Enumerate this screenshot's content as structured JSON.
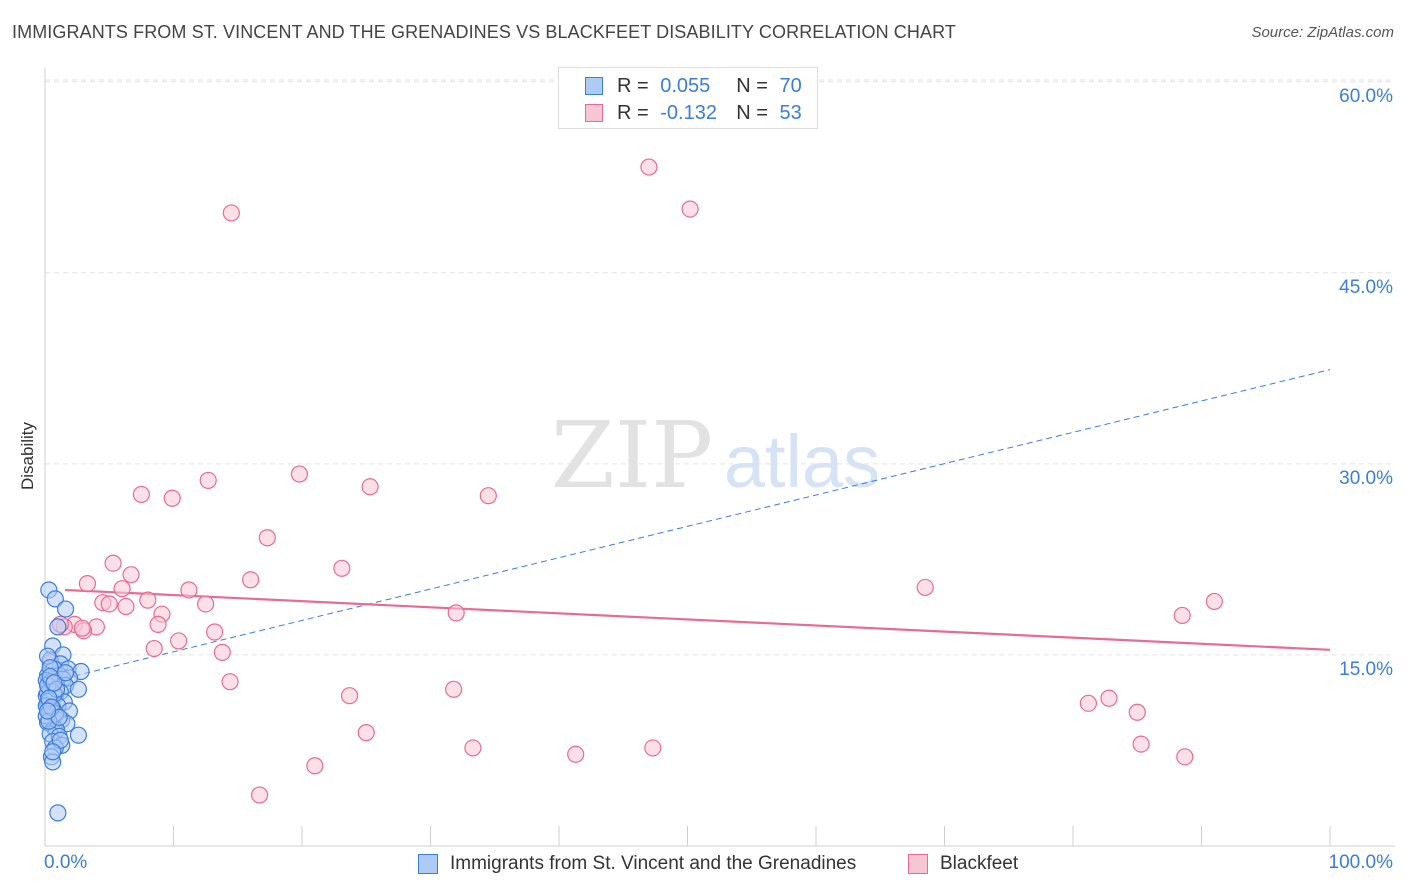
{
  "header": {
    "title": "IMMIGRANTS FROM ST. VINCENT AND THE GRENADINES VS BLACKFEET DISABILITY CORRELATION CHART",
    "source": "Source: ZipAtlas.com"
  },
  "watermark": {
    "zip": "ZIP",
    "atlas": "atlas"
  },
  "legend_top": [
    {
      "r_label": "R =",
      "r_value": "0.055",
      "n_label": "N =",
      "n_value": "70"
    },
    {
      "r_label": "R =",
      "r_value": "-0.132",
      "n_label": "N =",
      "n_value": "53"
    }
  ],
  "colors": {
    "blue_fill": "#aecbf5",
    "blue_stroke": "#3b7dd8",
    "pink_fill": "#f7c6d5",
    "pink_stroke": "#e76b94",
    "axis_text": "#3b7dd8"
  },
  "chart_data": {
    "type": "scatter",
    "title": "IMMIGRANTS FROM ST. VINCENT AND THE GRENADINES VS BLACKFEET DISABILITY CORRELATION CHART",
    "xlabel": "",
    "ylabel": "Disability",
    "xlim": [
      0,
      100
    ],
    "ylim": [
      0,
      60
    ],
    "x_tick_labels": [
      "0.0%",
      "100.0%"
    ],
    "y_ticks": [
      15,
      30,
      45,
      60
    ],
    "y_tick_labels": [
      "15.0%",
      "30.0%",
      "45.0%",
      "60.0%"
    ],
    "grid": true,
    "series": [
      {
        "name": "Immigrants from St. Vincent and the Grenadines",
        "color": "#3b7dd8",
        "R": 0.055,
        "N": 70,
        "trend": {
          "style": "dashed",
          "x": [
            0,
            100
          ],
          "y": [
            12.8,
            37.4
          ]
        },
        "points": [
          [
            0.3,
            20.1
          ],
          [
            0.8,
            19.4
          ],
          [
            1.6,
            18.6
          ],
          [
            1.0,
            17.2
          ],
          [
            0.6,
            15.7
          ],
          [
            1.4,
            15.0
          ],
          [
            0.4,
            14.6
          ],
          [
            1.2,
            14.3
          ],
          [
            0.7,
            13.9
          ],
          [
            1.8,
            13.9
          ],
          [
            2.8,
            13.7
          ],
          [
            0.2,
            13.4
          ],
          [
            1.1,
            13.4
          ],
          [
            1.9,
            13.2
          ],
          [
            0.5,
            13.1
          ],
          [
            1.4,
            13.1
          ],
          [
            0.9,
            12.7
          ],
          [
            1.6,
            12.6
          ],
          [
            0.3,
            12.4
          ],
          [
            2.6,
            12.3
          ],
          [
            0.6,
            12.2
          ],
          [
            1.2,
            12.1
          ],
          [
            0.1,
            11.8
          ],
          [
            0.8,
            11.8
          ],
          [
            0.4,
            11.5
          ],
          [
            1.5,
            11.3
          ],
          [
            0.2,
            11.2
          ],
          [
            1.0,
            11.0
          ],
          [
            0.6,
            10.8
          ],
          [
            1.9,
            10.6
          ],
          [
            0.3,
            10.5
          ],
          [
            0.9,
            10.3
          ],
          [
            0.5,
            10.0
          ],
          [
            1.3,
            9.9
          ],
          [
            0.2,
            9.7
          ],
          [
            1.7,
            9.6
          ],
          [
            0.7,
            9.3
          ],
          [
            0.9,
            9.1
          ],
          [
            0.4,
            8.8
          ],
          [
            1.1,
            8.6
          ],
          [
            2.6,
            8.7
          ],
          [
            0.6,
            8.2
          ],
          [
            1.3,
            7.9
          ],
          [
            0.8,
            7.7
          ],
          [
            0.5,
            7.0
          ],
          [
            0.6,
            6.6
          ],
          [
            1.0,
            2.6
          ],
          [
            0.2,
            14.9
          ],
          [
            0.4,
            14.0
          ],
          [
            0.1,
            13.0
          ],
          [
            0.5,
            12.9
          ],
          [
            0.2,
            12.0
          ],
          [
            0.7,
            11.9
          ],
          [
            0.3,
            11.4
          ],
          [
            0.1,
            11.0
          ],
          [
            0.4,
            10.7
          ],
          [
            0.8,
            10.4
          ],
          [
            0.1,
            10.2
          ],
          [
            0.3,
            9.8
          ],
          [
            1.2,
            8.3
          ],
          [
            0.6,
            7.4
          ],
          [
            0.2,
            12.6
          ],
          [
            1.6,
            13.6
          ],
          [
            0.4,
            13.3
          ],
          [
            0.9,
            12.3
          ],
          [
            0.3,
            11.6
          ],
          [
            0.5,
            10.9
          ],
          [
            1.1,
            10.1
          ],
          [
            0.2,
            10.6
          ],
          [
            0.7,
            12.8
          ]
        ]
      },
      {
        "name": "Blackfeet",
        "color": "#e76b94",
        "R": -0.132,
        "N": 53,
        "trend": {
          "style": "solid",
          "x": [
            0,
            100
          ],
          "y": [
            20.1,
            15.4
          ]
        },
        "points": [
          [
            47.0,
            53.3
          ],
          [
            50.2,
            50.0
          ],
          [
            14.5,
            49.7
          ],
          [
            19.8,
            29.2
          ],
          [
            12.7,
            28.7
          ],
          [
            25.3,
            28.2
          ],
          [
            7.5,
            27.6
          ],
          [
            34.5,
            27.5
          ],
          [
            9.9,
            27.3
          ],
          [
            17.3,
            24.2
          ],
          [
            5.3,
            22.2
          ],
          [
            23.1,
            21.8
          ],
          [
            6.7,
            21.3
          ],
          [
            16.0,
            20.9
          ],
          [
            3.3,
            20.6
          ],
          [
            6.0,
            20.2
          ],
          [
            11.2,
            20.1
          ],
          [
            68.5,
            20.3
          ],
          [
            8.0,
            19.3
          ],
          [
            4.5,
            19.1
          ],
          [
            12.5,
            19.0
          ],
          [
            5.0,
            19.0
          ],
          [
            6.3,
            18.8
          ],
          [
            91.0,
            19.2
          ],
          [
            9.1,
            18.2
          ],
          [
            32.0,
            18.3
          ],
          [
            88.5,
            18.1
          ],
          [
            2.3,
            17.4
          ],
          [
            4.0,
            17.2
          ],
          [
            1.5,
            17.2
          ],
          [
            8.8,
            17.4
          ],
          [
            3.0,
            16.9
          ],
          [
            13.2,
            16.8
          ],
          [
            10.4,
            16.1
          ],
          [
            8.5,
            15.5
          ],
          [
            13.8,
            15.2
          ],
          [
            14.4,
            12.9
          ],
          [
            31.8,
            12.3
          ],
          [
            23.7,
            11.8
          ],
          [
            82.8,
            11.6
          ],
          [
            81.2,
            11.2
          ],
          [
            85.0,
            10.5
          ],
          [
            25.0,
            8.9
          ],
          [
            33.3,
            7.7
          ],
          [
            47.3,
            7.7
          ],
          [
            41.3,
            7.2
          ],
          [
            85.3,
            8.0
          ],
          [
            88.7,
            7.0
          ],
          [
            21.0,
            6.3
          ],
          [
            16.7,
            4.0
          ],
          [
            1.2,
            17.4
          ],
          [
            2.9,
            17.1
          ],
          [
            0.4,
            14.4
          ]
        ]
      }
    ]
  },
  "bottom_legend": [
    {
      "label": "Immigrants from St. Vincent and the Grenadines"
    },
    {
      "label": "Blackfeet"
    }
  ]
}
